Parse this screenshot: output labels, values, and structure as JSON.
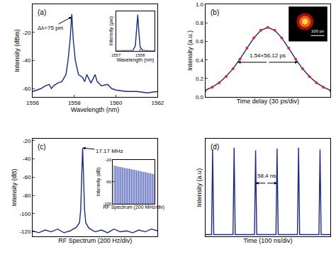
{
  "chart_data": [
    {
      "label": "(a)",
      "type": "line",
      "x_label": "Wavelength (nm)",
      "y_label": "Intensity (dBm)",
      "xlim": [
        1556,
        1562
      ],
      "xticks": [
        1556,
        1558,
        1560,
        1562
      ],
      "ylim": [
        -66,
        0
      ],
      "yticks": [
        -60,
        -40,
        -20
      ],
      "grid": false,
      "series": [
        {
          "color": "#1c2a80",
          "line_style": "solid",
          "x": [
            1556.0,
            1556.2,
            1556.4,
            1556.6,
            1556.8,
            1556.9,
            1557.0,
            1557.2,
            1557.4,
            1557.6,
            1557.7,
            1557.8,
            1557.88,
            1557.95,
            1558.05,
            1558.2,
            1558.4,
            1558.5,
            1558.6,
            1558.8,
            1559.0,
            1559.1,
            1559.3,
            1559.6,
            1559.8,
            1560.0,
            1560.5,
            1561.0,
            1561.5,
            1562.0
          ],
          "values": [
            -62,
            -61,
            -60,
            -58,
            -57,
            -60,
            -58,
            -56,
            -55,
            -50,
            -40,
            -25,
            -7,
            -25,
            -40,
            -50,
            -52,
            -55,
            -50,
            -56,
            -50,
            -55,
            -58,
            -57,
            -60,
            -61,
            -62,
            -62,
            -63,
            -62
          ]
        }
      ],
      "annotations": [
        {
          "text": "Δλ=75 pm",
          "x": 1557.88,
          "y": -9
        }
      ],
      "inset": {
        "type": "line",
        "x_label": "Wavelength (nm)",
        "y_label": "Intensity (μw)",
        "xlim": [
          1557,
          1558.6
        ],
        "xticks": [
          1557,
          1558
        ],
        "ylim": [
          0,
          330
        ],
        "tick_labels": "x",
        "series": [
          {
            "color": "#1c2a80",
            "line_style": "solid",
            "x": [
              1557.0,
              1557.2,
              1557.4,
              1557.6,
              1557.7,
              1557.8,
              1557.85,
              1557.9,
              1557.95,
              1558.0,
              1558.1,
              1558.2,
              1558.4,
              1558.6
            ],
            "values": [
              0,
              0,
              0,
              0.5,
              2,
              40,
              180,
              300,
              150,
              30,
              2,
              0.5,
              0,
              0
            ]
          }
        ]
      }
    },
    {
      "label": "(b)",
      "type": "line",
      "x_label": "Time delay (30 ps/div)",
      "y_label": "Intensity (a.u.)",
      "xlim": [
        -90,
        90
      ],
      "ylim": [
        0,
        1
      ],
      "yticks": [
        {
          "value": 0,
          "label": "0.0"
        },
        0.2,
        0.4,
        0.6,
        0.8,
        {
          "value": 1,
          "label": "1.0"
        }
      ],
      "tick_labels": "y",
      "grid": false,
      "series": [
        {
          "color": "#1c2a80",
          "line_style": "solid",
          "x": [
            -90,
            -80,
            -70,
            -60,
            -50,
            -40,
            -30,
            -20,
            -10,
            0,
            10,
            20,
            30,
            40,
            50,
            60,
            70,
            80,
            90
          ],
          "values": [
            0.074,
            0.108,
            0.156,
            0.222,
            0.307,
            0.411,
            0.527,
            0.638,
            0.719,
            0.75,
            0.72,
            0.639,
            0.526,
            0.41,
            0.306,
            0.221,
            0.155,
            0.107,
            0.073
          ]
        },
        {
          "color": "#e8262a",
          "marker": "circle",
          "line_style": "none",
          "x": [
            -90,
            -80,
            -70,
            -60,
            -50,
            -40,
            -30,
            -20,
            -10,
            0,
            10,
            20,
            30,
            40,
            50,
            60,
            70,
            80,
            90
          ],
          "values": [
            0.072,
            0.106,
            0.154,
            0.22,
            0.306,
            0.41,
            0.5265,
            0.638,
            0.7196,
            0.75,
            0.7196,
            0.638,
            0.5265,
            0.41,
            0.306,
            0.22,
            0.154,
            0.106,
            0.072
          ]
        }
      ],
      "annotations": [
        {
          "text": "1.54×56.12 ps",
          "x": 0,
          "y": 0.4,
          "span": [
            -43.2,
            43.2
          ],
          "span_y": 0.375
        }
      ],
      "inset_image": {
        "scale_label": "100 px"
      }
    },
    {
      "label": "(c)",
      "type": "line",
      "x_label": "RF Spectrum (200 Hz/div)",
      "y_label": "Intensity (dB)",
      "xlim": [
        -800,
        1200
      ],
      "ylim": [
        -125,
        -18
      ],
      "yticks": [
        -120,
        -100,
        -80,
        -60,
        -40,
        -20
      ],
      "tick_labels": "y",
      "grid": false,
      "series": [
        {
          "color": "#1c2a80",
          "line_style": "solid",
          "x": [
            -800,
            -700,
            -600,
            -500,
            -400,
            -300,
            -200,
            -100,
            -50,
            -30,
            -15,
            0,
            15,
            30,
            50,
            100,
            200,
            300,
            400,
            500,
            600,
            700,
            800,
            900,
            1000,
            1100,
            1200
          ],
          "values": [
            -119,
            -121,
            -118,
            -120,
            -117,
            -121,
            -119,
            -115,
            -110,
            -95,
            -60,
            -28,
            -60,
            -95,
            -110,
            -116,
            -120,
            -118,
            -121,
            -117,
            -120,
            -119,
            -121,
            -118,
            -120,
            -117,
            -119
          ]
        }
      ],
      "annotations": [
        {
          "text": "17.17 MHz",
          "x": 0,
          "y": -28
        }
      ],
      "inset": {
        "type": "stem",
        "x_label": "RF Spectrum (200 MHz/div)",
        "y_label": "Intensity (dB)",
        "xlim": [
          0,
          700
        ],
        "ylim": [
          -100,
          -20
        ],
        "yticks": [
          -100,
          -60,
          -20
        ],
        "tick_labels": "y",
        "series": [
          {
            "color": "#3d4fb0",
            "line_style": "solid",
            "x": [
              17.17,
              34.34,
              51.51,
              68.68,
              85.85,
              103.02,
              120.19,
              137.36,
              154.53,
              171.7,
              188.87,
              206.04,
              223.21,
              240.38,
              257.55,
              274.72,
              291.89,
              309.06,
              326.23,
              343.4,
              360.57,
              377.74,
              394.91,
              412.08,
              429.25,
              446.42,
              463.59,
              480.76,
              497.93,
              515.1,
              532.27,
              549.44,
              566.61,
              583.78,
              600.95,
              618.12,
              635.29,
              652.46,
              669.63,
              686.8
            ],
            "values": [
              -30,
              -31,
              -31,
              -32,
              -32,
              -33,
              -33,
              -33,
              -34,
              -34,
              -35,
              -35,
              -35,
              -36,
              -36,
              -36,
              -37,
              -37,
              -38,
              -38,
              -38,
              -39,
              -39,
              -40,
              -40,
              -40,
              -41,
              -41,
              -42,
              -42,
              -42,
              -43,
              -43,
              -44,
              -44,
              -44,
              -45,
              -45,
              -46,
              -46
            ]
          }
        ]
      }
    },
    {
      "label": "(d)",
      "type": "line",
      "x_label": "Time (100 ns/div)",
      "y_label": "Intensity (a.u)",
      "xlim": [
        0,
        340
      ],
      "ylim": [
        0,
        1.1
      ],
      "tick_labels": false,
      "grid": false,
      "series": [
        {
          "color": "#1c2a80",
          "line_style": "solid",
          "x": [
            0,
            17,
            20,
            23,
            75.4,
            78.4,
            81.4,
            133.8,
            136.8,
            139.8,
            192.2,
            195.2,
            198.2,
            250.6,
            253.6,
            256.6,
            309,
            312,
            315,
            340
          ],
          "values": [
            0.02,
            0.02,
            0.98,
            0.02,
            0.02,
            1.0,
            0.02,
            0.02,
            0.97,
            0.02,
            0.02,
            0.99,
            0.02,
            0.02,
            1.0,
            0.02,
            0.02,
            0.98,
            0.02,
            0.02
          ]
        }
      ],
      "annotations": [
        {
          "text": "58.4 ns",
          "x": 166,
          "y": 0.63,
          "span": [
            136.8,
            195.2
          ],
          "span_y": 0.6
        }
      ]
    }
  ]
}
